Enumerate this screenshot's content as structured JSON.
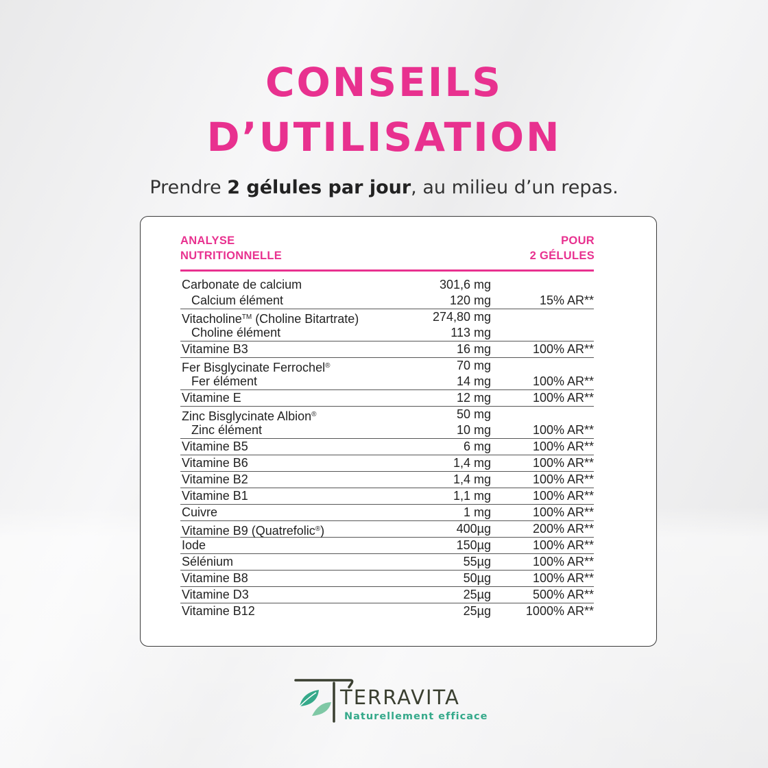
{
  "title": {
    "line1": "CONSEILS",
    "line2": "D’UTILISATION"
  },
  "subtitle": {
    "prefix": "Prendre ",
    "bold": "2 gélules par jour",
    "suffix": ", au milieu d’un repas."
  },
  "table": {
    "header_left": [
      "ANALYSE",
      "NUTRITIONNELLE"
    ],
    "header_right": [
      "POUR",
      "2 GÉLULES"
    ],
    "groups": [
      {
        "lines": [
          {
            "name": "Carbonate de calcium",
            "qty": "301,6 mg",
            "ar": ""
          },
          {
            "name": "Calcium élément",
            "qty": "120 mg",
            "ar": "15% AR**",
            "sub": true
          }
        ]
      },
      {
        "lines": [
          {
            "name": "Vitacholine",
            "mark": "TM",
            "name_rest": " (Choline Bitartrate)",
            "qty": "274,80 mg",
            "ar": ""
          },
          {
            "name": "Choline élément",
            "qty": "113 mg",
            "ar": "",
            "sub": true
          }
        ]
      },
      {
        "lines": [
          {
            "name": "Vitamine B3",
            "qty": "16 mg",
            "ar": "100% AR**"
          }
        ]
      },
      {
        "lines": [
          {
            "name": "Fer Bisglycinate Ferrochel",
            "mark": "®",
            "qty": "70 mg",
            "ar": ""
          },
          {
            "name": "Fer élément",
            "qty": "14 mg",
            "ar": "100% AR**",
            "sub": true
          }
        ]
      },
      {
        "lines": [
          {
            "name": "Vitamine E",
            "qty": "12 mg",
            "ar": "100% AR**"
          }
        ]
      },
      {
        "lines": [
          {
            "name": "Zinc Bisglycinate Albion",
            "mark": "®",
            "qty": "50 mg",
            "ar": ""
          },
          {
            "name": "Zinc élément",
            "qty": "10 mg",
            "ar": "100% AR**",
            "sub": true
          }
        ]
      },
      {
        "lines": [
          {
            "name": "Vitamine B5",
            "qty": "6 mg",
            "ar": "100% AR**"
          }
        ]
      },
      {
        "lines": [
          {
            "name": "Vitamine B6",
            "qty": "1,4 mg",
            "ar": "100% AR**"
          }
        ]
      },
      {
        "lines": [
          {
            "name": "Vitamine B2",
            "qty": "1,4 mg",
            "ar": "100% AR**"
          }
        ]
      },
      {
        "lines": [
          {
            "name": "Vitamine B1",
            "qty": "1,1 mg",
            "ar": "100% AR**"
          }
        ]
      },
      {
        "lines": [
          {
            "name": "Cuivre",
            "qty": "1 mg",
            "ar": "100% AR**"
          }
        ]
      },
      {
        "lines": [
          {
            "name": "Vitamine B9 (Quatrefolic",
            "mark": "®",
            "name_rest": ")",
            "qty": "400µg",
            "ar": "200% AR**"
          }
        ]
      },
      {
        "lines": [
          {
            "name": "Iode",
            "qty": "150µg",
            "ar": "100% AR**"
          }
        ]
      },
      {
        "lines": [
          {
            "name": "Sélénium",
            "qty": "55µg",
            "ar": "100% AR**"
          }
        ]
      },
      {
        "lines": [
          {
            "name": "Vitamine B8",
            "qty": "50µg",
            "ar": "100% AR**"
          }
        ]
      },
      {
        "lines": [
          {
            "name": "Vitamine D3",
            "qty": "25µg",
            "ar": "500% AR**"
          }
        ]
      },
      {
        "lines": [
          {
            "name": "Vitamine B12",
            "qty": "25µg",
            "ar": "1000% AR**"
          }
        ]
      }
    ]
  },
  "logo": {
    "brand": "TERRAVITA",
    "tagline": "Naturellement efficace",
    "icon": "leaf-t-logo-icon"
  },
  "colors": {
    "accent": "#e8318f",
    "brand_dark": "#3a3f30",
    "brand_green": "#35a98a"
  }
}
